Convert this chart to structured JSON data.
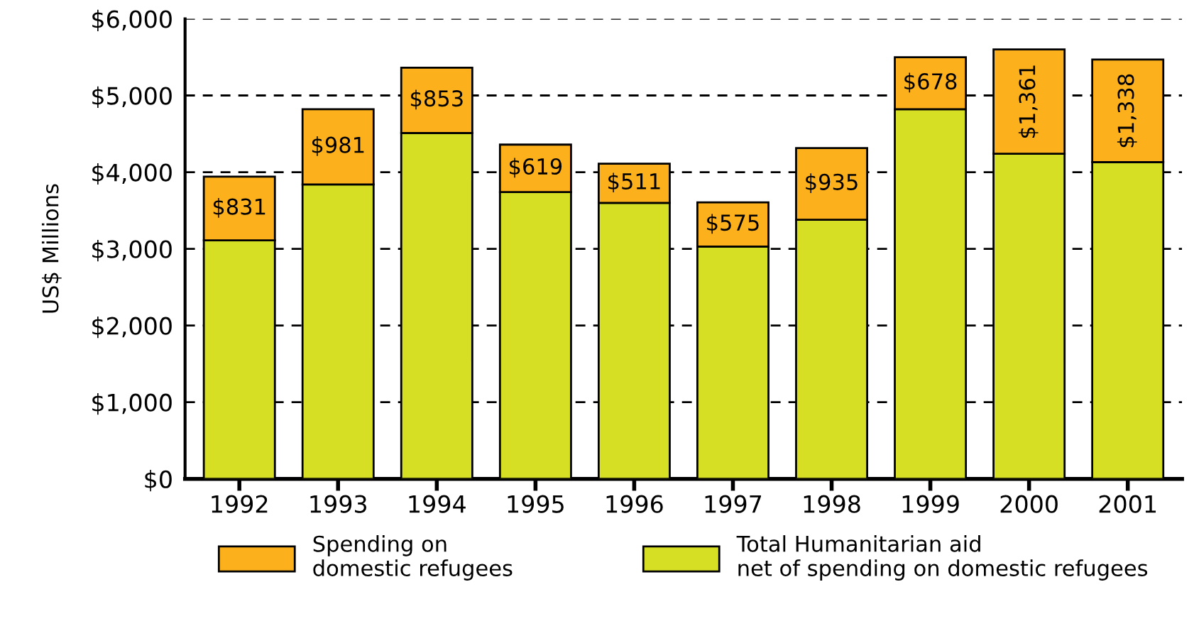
{
  "chart_data": {
    "type": "bar",
    "stacked": true,
    "ylabel": "US$ Millions",
    "categories": [
      "1992",
      "1993",
      "1994",
      "1995",
      "1996",
      "1997",
      "1998",
      "1999",
      "2000",
      "2001"
    ],
    "series": [
      {
        "name": "Total Humanitarian aid\nnet of spending on domestic refugees",
        "color": "#d6df23",
        "values": [
          3110,
          3840,
          4510,
          3740,
          3600,
          3030,
          3380,
          4820,
          4240,
          4130
        ]
      },
      {
        "name": "Spending on\ndomestic refugees",
        "color": "#fbb01c",
        "values": [
          831,
          981,
          853,
          619,
          511,
          575,
          935,
          678,
          1361,
          1338
        ],
        "value_labels": [
          "$831",
          "$981",
          "$853",
          "$619",
          "$511",
          "$575",
          "$935",
          "$678",
          "$1,361",
          "$1,338"
        ]
      }
    ],
    "ylim": [
      0,
      6000
    ],
    "yticks": [
      {
        "value": 0,
        "label": "$0"
      },
      {
        "value": 1000,
        "label": "$1,000"
      },
      {
        "value": 2000,
        "label": "$2,000"
      },
      {
        "value": 3000,
        "label": "$3,000"
      },
      {
        "value": 4000,
        "label": "$4,000"
      },
      {
        "value": 5000,
        "label": "$5,000"
      },
      {
        "value": 6000,
        "label": "$6,000"
      }
    ],
    "grid": "y",
    "legend": "bottom"
  }
}
